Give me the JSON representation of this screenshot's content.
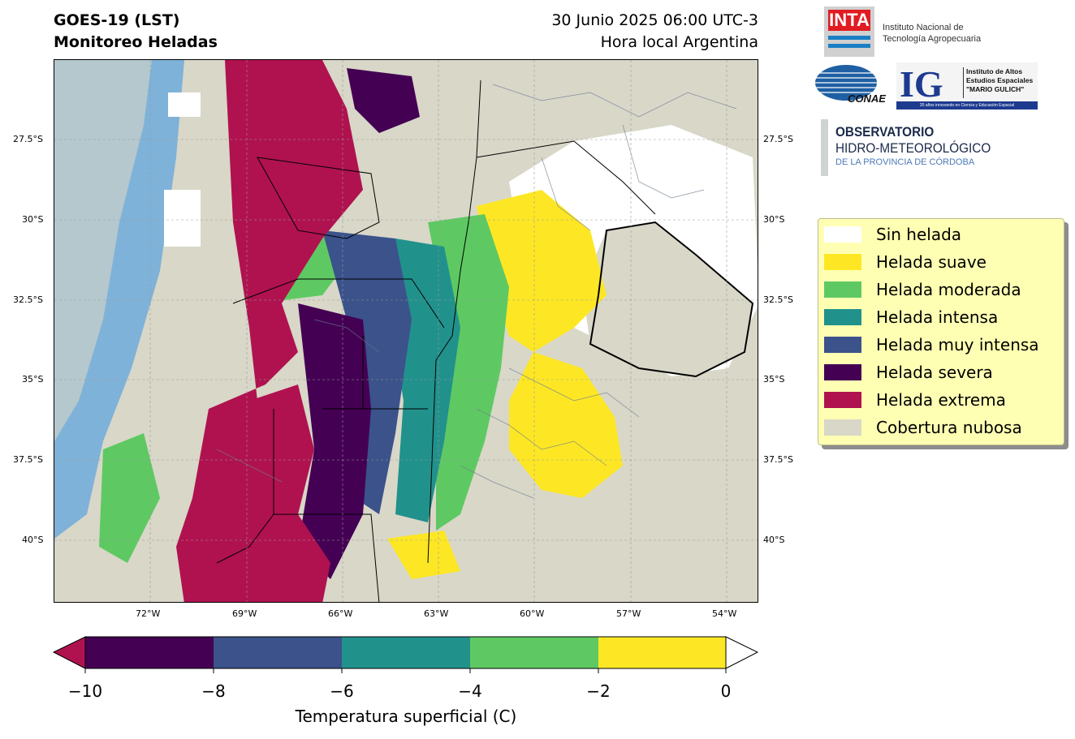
{
  "title": {
    "line1": "GOES-19 (LST)",
    "line2": "Monitoreo Heladas",
    "date_line": "30 Junio 2025 06:00 UTC-3",
    "local_line": "Hora local Argentina"
  },
  "map": {
    "lat_labels": [
      "27.5°S",
      "30°S",
      "32.5°S",
      "35°S",
      "37.5°S",
      "40°S"
    ],
    "lon_labels": [
      "72°W",
      "69°W",
      "66°W",
      "63°W",
      "60°W",
      "57°W",
      "54°W"
    ],
    "gridlines": true
  },
  "logos": {
    "inta_mark": "INTA",
    "inta_name_line1": "Instituto Nacional de",
    "inta_name_line2": "Tecnología Agropecuaria",
    "conae_mark": "CONAE",
    "ig_mark": "IG",
    "ig_line1": "Instituto de Altos",
    "ig_line2": "Estudios Espaciales",
    "ig_line3": "\"MARIO GULICH\"",
    "ig_footer": "20 años innovando en Ciencia y Educación Espacial",
    "obs_line1": "OBSERVATORIO",
    "obs_line2": "HIDRO-METEOROLÓGICO",
    "obs_line3": "DE LA PROVINCIA DE CÓRDOBA"
  },
  "legend": {
    "items": [
      {
        "label": "Sin helada",
        "color": "#ffffff"
      },
      {
        "label": "Helada suave",
        "color": "#fde725"
      },
      {
        "label": "Helada moderada",
        "color": "#5ec962"
      },
      {
        "label": "Helada intensa",
        "color": "#21918c"
      },
      {
        "label": "Helada muy intensa",
        "color": "#3b528b"
      },
      {
        "label": "Helada severa",
        "color": "#440154"
      },
      {
        "label": "Helada extrema",
        "color": "#b0124f"
      },
      {
        "label": "Cobertura nubosa",
        "color": "#d8d7c8"
      }
    ]
  },
  "colorbar": {
    "label": "Temperatura superficial (C)",
    "ticks": [
      "−10",
      "−8",
      "−6",
      "−4",
      "−2",
      "0"
    ],
    "segments": [
      "#440154",
      "#3b528b",
      "#21918c",
      "#5ec962",
      "#fde725"
    ],
    "under_color": "#b0124f",
    "over_color": "#ffffff"
  },
  "colors": {
    "ocean": "#7fb2d8",
    "cloud": "#d8d7c8",
    "border": "#000000",
    "department_lines": "#6b7a8f"
  }
}
